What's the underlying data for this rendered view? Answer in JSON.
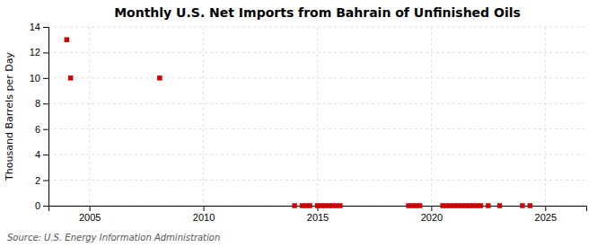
{
  "chart_data": {
    "type": "scatter",
    "title": "Monthly U.S. Net Imports from Bahrain of Unfinished Oils",
    "ylabel": "Thousand Barrels per Day",
    "source": "Source: U.S. Energy Information Administration",
    "x": [
      2004.0,
      2004.17,
      2008.08,
      2014.0,
      2014.33,
      2014.5,
      2014.67,
      2015.0,
      2015.17,
      2015.33,
      2015.5,
      2015.67,
      2015.83,
      2016.0,
      2019.0,
      2019.17,
      2019.33,
      2019.5,
      2020.5,
      2020.67,
      2020.83,
      2021.0,
      2021.17,
      2021.33,
      2021.5,
      2021.67,
      2021.83,
      2022.0,
      2022.17,
      2022.5,
      2023.0,
      2024.0,
      2024.33
    ],
    "values": [
      13.0,
      10.0,
      10.0,
      0.0,
      0.0,
      0.0,
      0.0,
      0.0,
      0.0,
      0.0,
      0.0,
      0.0,
      0.0,
      0.0,
      0.0,
      0.0,
      0.0,
      0.0,
      0.0,
      0.0,
      0.0,
      0.0,
      0.0,
      0.0,
      0.0,
      0.0,
      0.0,
      0.0,
      0.0,
      0.0,
      0.0,
      0.0,
      0.0
    ],
    "color": "#cc0000",
    "marker": "square",
    "xlim": [
      2003.2,
      2026.8
    ],
    "xticks": [
      2005,
      2010,
      2015,
      2020,
      2025
    ],
    "ylim": [
      0,
      14
    ],
    "yticks": [
      0,
      2,
      4,
      6,
      8,
      10,
      12,
      14
    ],
    "grid": true
  }
}
